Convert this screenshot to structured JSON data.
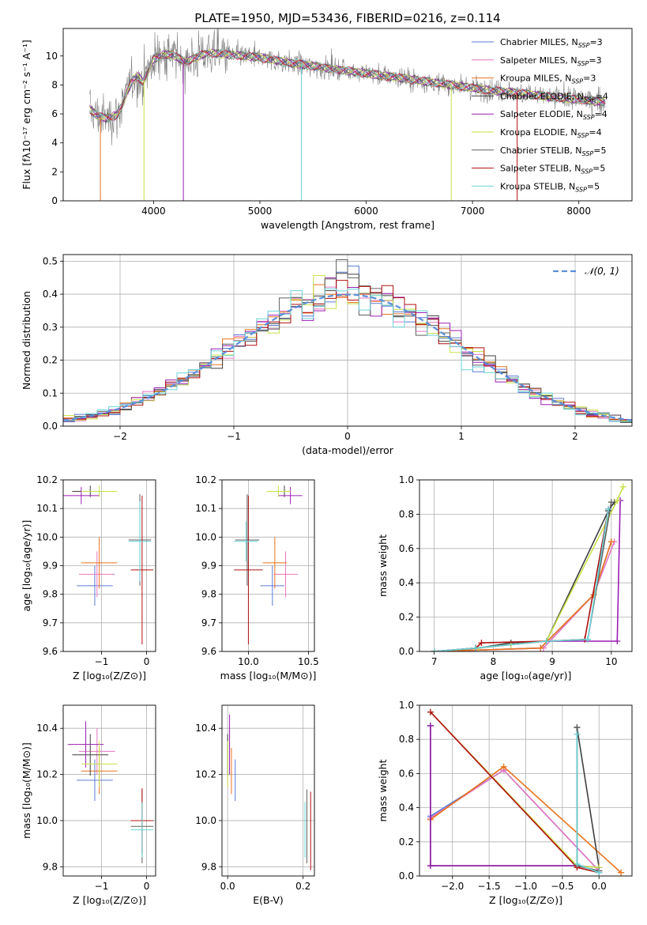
{
  "figure_title": "PLATE=1950, MJD=53436, FIBERID=0216, z=0.114",
  "model_colors": {
    "Chabrier MILES": "#5b7bd6",
    "Salpeter MILES": "#e377c2",
    "Kroupa MILES": "#e8731c",
    "Chabrier ELODIE": "#404040",
    "Salpeter ELODIE": "#9b1fb3",
    "Kroupa ELODIE": "#c7e24a",
    "Chabrier STELIB": "#606060",
    "Salpeter STELIB": "#b01010",
    "Kroupa STELIB": "#6ad4d8",
    "data": "#808080",
    "normal_curve": "#5b8fd9"
  },
  "chart_data": [
    {
      "id": "spectrum",
      "type": "line",
      "xlabel": "wavelength [Angstrom, rest frame]",
      "ylabel": "Flux [fλ10⁻¹⁷ erg cm⁻² s⁻¹ A⁻¹]",
      "xlim": [
        3150,
        8500
      ],
      "ylim": [
        0,
        11.9
      ],
      "xticks": [
        4000,
        5000,
        6000,
        7000,
        8000
      ],
      "yticks": [
        0,
        2,
        4,
        6,
        8,
        10
      ],
      "grid": false,
      "legend_position": "right",
      "legend": [
        "Chabrier MILES, N_SSP=3",
        "Salpeter MILES, N_SSP=3",
        "Kroupa MILES, N_SSP=3",
        "Chabrier ELODIE, N_SSP=4",
        "Salpeter ELODIE, N_SSP=4",
        "Kroupa ELODIE, N_SSP=4",
        "Chabrier STELIB, N_SSP=5",
        "Salpeter STELIB, N_SSP=5",
        "Kroupa STELIB, N_SSP=5"
      ],
      "continuum": {
        "x": [
          3400,
          3450,
          3500,
          3550,
          3650,
          3700,
          3750,
          3800,
          3850,
          3900,
          3950,
          4000,
          4100,
          4200,
          4300,
          4400,
          4500,
          4700,
          5000,
          5300,
          5500,
          5800,
          6000,
          6300,
          6600,
          6900,
          7200,
          7500,
          7800,
          8000,
          8250
        ],
        "y": [
          6.3,
          6.0,
          5.8,
          5.7,
          5.9,
          6.5,
          7.5,
          8.3,
          8.6,
          8.2,
          9.0,
          9.8,
          10.1,
          10.0,
          9.6,
          9.9,
          10.2,
          10.1,
          9.9,
          9.5,
          9.3,
          9.0,
          8.8,
          8.5,
          8.2,
          7.9,
          7.6,
          7.4,
          7.1,
          7.0,
          6.8
        ]
      },
      "model_drops": [
        {
          "model": "Kroupa MILES",
          "x": 3500
        },
        {
          "model": "Kroupa ELODIE",
          "x": 3910
        },
        {
          "model": "Salpeter ELODIE",
          "x": 4280
        },
        {
          "model": "Kroupa STELIB",
          "x": 5390
        },
        {
          "model": "Kroupa ELODIE",
          "x": 6800
        },
        {
          "model": "Salpeter STELIB",
          "x": 7420
        }
      ]
    },
    {
      "id": "residuals",
      "type": "line",
      "xlabel": "(data-model)/error",
      "ylabel": "Normed distribution",
      "xlim": [
        -2.5,
        2.5
      ],
      "ylim": [
        0,
        0.52
      ],
      "xticks": [
        -2,
        -1,
        0,
        1,
        2
      ],
      "yticks": [
        0.0,
        0.1,
        0.2,
        0.3,
        0.4,
        0.5
      ],
      "grid": true,
      "legend_position": "top-right",
      "legend": [
        "𝒩(0, 1)"
      ],
      "bins": 50,
      "bin_range": [
        -2.5,
        2.5
      ]
    },
    {
      "id": "age_vs_Z",
      "type": "scatter",
      "xlabel": "Z [log₁₀(Z/Z⊙)]",
      "ylabel": "age  [log₁₀(age/yr)]",
      "xlim": [
        -1.85,
        0.2
      ],
      "ylim": [
        9.6,
        10.2
      ],
      "xticks": [
        -1,
        0
      ],
      "yticks": [
        9.6,
        9.7,
        9.8,
        9.9,
        10.0,
        10.1,
        10.2
      ],
      "grid": true,
      "points": [
        {
          "model": "Chabrier MILES",
          "x": -1.15,
          "y": 9.83,
          "xerr": 0.4,
          "yerr": 0.07
        },
        {
          "model": "Salpeter MILES",
          "x": -1.1,
          "y": 9.87,
          "xerr": 0.4,
          "yerr": 0.08
        },
        {
          "model": "Kroupa MILES",
          "x": -1.05,
          "y": 9.91,
          "xerr": 0.4,
          "yerr": 0.09
        },
        {
          "model": "Chabrier ELODIE",
          "x": -1.25,
          "y": 10.16,
          "xerr": 0.4,
          "yerr": 0.02
        },
        {
          "model": "Salpeter ELODIE",
          "x": -1.45,
          "y": 10.145,
          "xerr": 0.4,
          "yerr": 0.03
        },
        {
          "model": "Kroupa ELODIE",
          "x": -1.05,
          "y": 10.16,
          "xerr": 0.4,
          "yerr": 0.02
        },
        {
          "model": "Chabrier STELIB",
          "x": -0.15,
          "y": 9.99,
          "xerr": 0.25,
          "yerr": 0.16
        },
        {
          "model": "Salpeter STELIB",
          "x": -0.1,
          "y": 9.885,
          "xerr": 0.25,
          "yerr": 0.26
        },
        {
          "model": "Kroupa STELIB",
          "x": -0.15,
          "y": 9.985,
          "xerr": 0.25,
          "yerr": 0.14
        }
      ]
    },
    {
      "id": "age_vs_mass",
      "type": "scatter",
      "xlabel": "mass [log₁₀(M/M⊙)]",
      "ylabel": "",
      "xlim": [
        9.78,
        10.55
      ],
      "ylim": [
        9.6,
        10.2
      ],
      "xticks": [
        10.0,
        10.5
      ],
      "yticks": [
        9.6,
        9.7,
        9.8,
        9.9,
        10.0,
        10.1,
        10.2
      ],
      "grid": true,
      "points": [
        {
          "model": "Chabrier MILES",
          "x": 10.2,
          "y": 9.83,
          "xerr": 0.1,
          "yerr": 0.07
        },
        {
          "model": "Salpeter MILES",
          "x": 10.31,
          "y": 9.87,
          "xerr": 0.1,
          "yerr": 0.08
        },
        {
          "model": "Kroupa MILES",
          "x": 10.22,
          "y": 9.91,
          "xerr": 0.1,
          "yerr": 0.09
        },
        {
          "model": "Chabrier ELODIE",
          "x": 10.3,
          "y": 10.16,
          "xerr": 0.05,
          "yerr": 0.02
        },
        {
          "model": "Salpeter ELODIE",
          "x": 10.35,
          "y": 10.145,
          "xerr": 0.1,
          "yerr": 0.03
        },
        {
          "model": "Kroupa ELODIE",
          "x": 10.25,
          "y": 10.16,
          "xerr": 0.1,
          "yerr": 0.02
        },
        {
          "model": "Chabrier STELIB",
          "x": 9.99,
          "y": 9.99,
          "xerr": 0.1,
          "yerr": 0.16
        },
        {
          "model": "Salpeter STELIB",
          "x": 10.0,
          "y": 9.885,
          "xerr": 0.12,
          "yerr": 0.26
        },
        {
          "model": "Kroupa STELIB",
          "x": 9.98,
          "y": 9.985,
          "xerr": 0.1,
          "yerr": 0.07
        }
      ]
    },
    {
      "id": "weight_vs_age",
      "type": "line",
      "xlabel": "age  [log₁₀(age/yr)]",
      "ylabel": "mass weight",
      "xlim": [
        6.75,
        10.35
      ],
      "ylim": [
        0,
        1.0
      ],
      "xticks": [
        7,
        8,
        9,
        10
      ],
      "yticks": [
        0.0,
        0.2,
        0.4,
        0.6,
        0.8,
        1.0
      ],
      "grid": true,
      "series": [
        {
          "model": "Chabrier MILES",
          "x": [
            7.0,
            8.8,
            9.7,
            10.0
          ],
          "y": [
            0.0,
            0.02,
            0.33,
            0.64
          ]
        },
        {
          "model": "Salpeter MILES",
          "x": [
            7.0,
            8.85,
            9.7,
            10.05
          ],
          "y": [
            0.0,
            0.02,
            0.33,
            0.64
          ]
        },
        {
          "model": "Kroupa MILES",
          "x": [
            7.0,
            8.8,
            9.7,
            10.0
          ],
          "y": [
            0.0,
            0.02,
            0.33,
            0.64
          ]
        },
        {
          "model": "Chabrier ELODIE",
          "x": [
            7.0,
            7.75,
            8.3,
            8.9,
            9.95,
            10.05
          ],
          "y": [
            0.0,
            0.02,
            0.05,
            0.06,
            0.82,
            0.87
          ]
        },
        {
          "model": "Salpeter ELODIE",
          "x": [
            7.0,
            7.75,
            8.3,
            8.9,
            10.1,
            10.15
          ],
          "y": [
            0.0,
            0.02,
            0.04,
            0.06,
            0.06,
            0.88
          ]
        },
        {
          "model": "Kroupa ELODIE",
          "x": [
            7.0,
            7.75,
            8.3,
            8.9,
            10.1,
            10.2
          ],
          "y": [
            0.0,
            0.02,
            0.04,
            0.06,
            0.88,
            0.96
          ]
        },
        {
          "model": "Chabrier STELIB",
          "x": [
            7.0,
            7.7,
            8.9,
            9.6,
            10.0
          ],
          "y": [
            0.0,
            0.02,
            0.06,
            0.07,
            0.87
          ]
        },
        {
          "model": "Salpeter STELIB",
          "x": [
            7.0,
            7.7,
            7.8,
            8.9,
            9.55,
            9.95
          ],
          "y": [
            0.0,
            0.02,
            0.05,
            0.06,
            0.07,
            0.83
          ]
        },
        {
          "model": "Kroupa STELIB",
          "x": [
            7.0,
            7.7,
            8.9,
            9.6,
            9.95
          ],
          "y": [
            0.0,
            0.02,
            0.06,
            0.07,
            0.83
          ]
        }
      ]
    },
    {
      "id": "mass_vs_Z",
      "type": "scatter",
      "xlabel": "Z [log₁₀(Z/Z⊙)]",
      "ylabel": "mass [log₁₀(M/M⊙)]",
      "xlim": [
        -1.85,
        0.2
      ],
      "ylim": [
        9.76,
        10.5
      ],
      "xticks": [
        -1,
        0
      ],
      "yticks": [
        9.8,
        10.0,
        10.2,
        10.4
      ],
      "grid": true,
      "points": [
        {
          "model": "Chabrier MILES",
          "x": -1.15,
          "y": 10.175,
          "xerr": 0.4,
          "yerr": 0.09
        },
        {
          "model": "Salpeter MILES",
          "x": -1.1,
          "y": 10.3,
          "xerr": 0.4,
          "yerr": 0.1
        },
        {
          "model": "Kroupa MILES",
          "x": -1.05,
          "y": 10.215,
          "xerr": 0.4,
          "yerr": 0.1
        },
        {
          "model": "Chabrier ELODIE",
          "x": -1.25,
          "y": 10.285,
          "xerr": 0.4,
          "yerr": 0.09
        },
        {
          "model": "Salpeter ELODIE",
          "x": -1.35,
          "y": 10.33,
          "xerr": 0.4,
          "yerr": 0.1
        },
        {
          "model": "Kroupa ELODIE",
          "x": -1.05,
          "y": 10.245,
          "xerr": 0.4,
          "yerr": 0.1
        },
        {
          "model": "Chabrier STELIB",
          "x": -0.1,
          "y": 9.975,
          "xerr": 0.25,
          "yerr": 0.16
        },
        {
          "model": "Salpeter STELIB",
          "x": -0.1,
          "y": 10.0,
          "xerr": 0.25,
          "yerr": 0.14
        },
        {
          "model": "Kroupa STELIB",
          "x": -0.1,
          "y": 9.96,
          "xerr": 0.25,
          "yerr": 0.12
        }
      ]
    },
    {
      "id": "mass_vs_EBV",
      "type": "scatter",
      "xlabel": "E(B-V)",
      "ylabel": "",
      "xlim": [
        -0.015,
        0.23
      ],
      "ylim": [
        9.76,
        10.5
      ],
      "xticks": [
        0.0,
        0.2
      ],
      "yticks": [
        9.8,
        10.0,
        10.2,
        10.4
      ],
      "grid": true,
      "points": [
        {
          "model": "Chabrier MILES",
          "x": 0.02,
          "y": 10.175,
          "yerr": 0.09
        },
        {
          "model": "Salpeter MILES",
          "x": 0.005,
          "y": 10.3,
          "yerr": 0.1
        },
        {
          "model": "Kroupa MILES",
          "x": 0.01,
          "y": 10.215,
          "yerr": 0.1
        },
        {
          "model": "Chabrier ELODIE",
          "x": 0.0,
          "y": 10.285,
          "yerr": 0.09
        },
        {
          "model": "Salpeter ELODIE",
          "x": 0.005,
          "y": 10.33,
          "yerr": 0.13
        },
        {
          "model": "Kroupa ELODIE",
          "x": 0.0,
          "y": 10.245,
          "yerr": 0.1
        },
        {
          "model": "Chabrier STELIB",
          "x": 0.21,
          "y": 9.975,
          "yerr": 0.16
        },
        {
          "model": "Salpeter STELIB",
          "x": 0.22,
          "y": 9.955,
          "yerr": 0.17
        },
        {
          "model": "Kroupa STELIB",
          "x": 0.205,
          "y": 9.96,
          "yerr": 0.12
        }
      ]
    },
    {
      "id": "weight_vs_Z",
      "type": "line",
      "xlabel": "Z [log₁₀(Z/Z⊙)]",
      "ylabel": "mass weight",
      "xlim": [
        -2.45,
        0.45
      ],
      "ylim": [
        0,
        1.0
      ],
      "xticks": [
        -2.0,
        -1.5,
        -1.0,
        -0.5,
        0.0
      ],
      "yticks": [
        0.0,
        0.2,
        0.4,
        0.6,
        0.8,
        1.0
      ],
      "grid": true,
      "series": [
        {
          "model": "Chabrier MILES",
          "x": [
            -2.3,
            -1.3,
            0.0
          ],
          "y": [
            0.35,
            0.62,
            0.03
          ]
        },
        {
          "model": "Salpeter MILES",
          "x": [
            -2.3,
            -1.3,
            0.0
          ],
          "y": [
            0.34,
            0.62,
            0.03
          ]
        },
        {
          "model": "Kroupa MILES",
          "x": [
            -2.3,
            -1.3,
            0.3
          ],
          "y": [
            0.33,
            0.64,
            0.02
          ]
        },
        {
          "model": "Chabrier ELODIE",
          "x": [
            -2.3,
            -2.3,
            -0.3,
            -0.3,
            0.0
          ],
          "y": [
            0.88,
            0.06,
            0.06,
            0.87,
            0.05
          ]
        },
        {
          "model": "Salpeter ELODIE",
          "x": [
            -2.3,
            -2.3,
            -0.3,
            0.0
          ],
          "y": [
            0.88,
            0.06,
            0.06,
            0.05
          ]
        },
        {
          "model": "Kroupa ELODIE",
          "x": [
            -2.3,
            -0.3,
            0.0
          ],
          "y": [
            0.96,
            0.06,
            0.05
          ]
        },
        {
          "model": "Chabrier STELIB",
          "x": [
            -0.3,
            -0.3,
            0.0
          ],
          "y": [
            0.87,
            0.06,
            0.03
          ]
        },
        {
          "model": "Salpeter STELIB",
          "x": [
            -2.3,
            -0.3,
            0.0
          ],
          "y": [
            0.96,
            0.05,
            0.02
          ]
        },
        {
          "model": "Kroupa STELIB",
          "x": [
            -0.3,
            -0.3,
            0.0
          ],
          "y": [
            0.83,
            0.07,
            0.02
          ]
        }
      ]
    }
  ]
}
